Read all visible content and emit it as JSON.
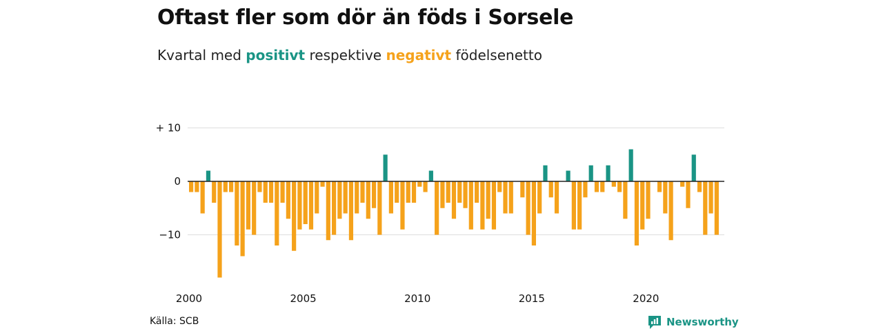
{
  "title": "Oftast fler som dör än föds i Sorsele",
  "subtitle": {
    "before": "Kvartal med ",
    "positive_word": "positivt",
    "middle": " respektive ",
    "negative_word": "negativt",
    "after": " födelsenetto"
  },
  "source": "Källa: SCB",
  "brand": "Newsworthy",
  "colors": {
    "positive": "#1a9485",
    "negative": "#f5a21b",
    "grid": "#dddddd",
    "zero_line": "#222222"
  },
  "chart_data": {
    "type": "bar",
    "x_start": "2000 Q1",
    "x_step": "quarter",
    "x_ticks": [
      "2000",
      "2005",
      "2010",
      "2015",
      "2020"
    ],
    "y_ticks": [
      {
        "value": 10,
        "label": "+ 10"
      },
      {
        "value": 0,
        "label": "0"
      },
      {
        "value": -10,
        "label": "−10"
      }
    ],
    "ylim": [
      -19,
      10
    ],
    "grid": true,
    "values": [
      -2,
      -2,
      -6,
      2,
      -4,
      -18,
      -2,
      -2,
      -12,
      -14,
      -9,
      -10,
      -2,
      -4,
      -4,
      -12,
      -4,
      -7,
      -13,
      -9,
      -8,
      -9,
      -6,
      -1,
      -11,
      -10,
      -7,
      -6,
      -11,
      -6,
      -4,
      -7,
      -5,
      -10,
      5,
      -6,
      -4,
      -9,
      -4,
      -4,
      -1,
      -2,
      2,
      -10,
      -5,
      -4,
      -7,
      -4,
      -5,
      -9,
      -4,
      -9,
      -7,
      -9,
      -2,
      -6,
      -6,
      0,
      -3,
      -10,
      -12,
      -6,
      3,
      -3,
      -6,
      0,
      2,
      -9,
      -9,
      -3,
      3,
      -2,
      -2,
      3,
      -1,
      -2,
      -7,
      6,
      -12,
      -9,
      -7,
      0,
      -2,
      -6,
      -11,
      0,
      -1,
      -5,
      5,
      -2,
      -10,
      -6,
      -10
    ]
  }
}
